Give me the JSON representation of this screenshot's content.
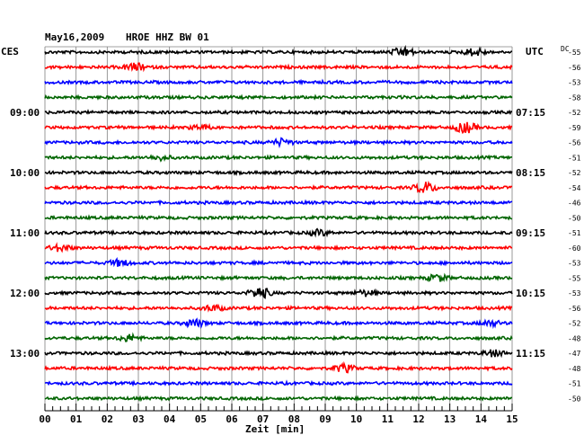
{
  "header": {
    "date": "May16,2009",
    "station": "HROE HHZ BW 01",
    "left_label": "CES",
    "right_label": "UTC",
    "dc_label": "DC"
  },
  "colors": {
    "trace_cycle": [
      "#000000",
      "#ff0000",
      "#0000ff",
      "#006400"
    ],
    "grid": "#808080",
    "background": "#ffffff"
  },
  "chart_data": {
    "type": "line",
    "title": "May16,2009   HROE HHZ BW 01",
    "xlabel": "Zeit [min]",
    "xlim": [
      0,
      15
    ],
    "x_ticks": [
      "00",
      "01",
      "02",
      "03",
      "04",
      "05",
      "06",
      "07",
      "08",
      "09",
      "10",
      "11",
      "12",
      "13",
      "14",
      "15"
    ],
    "minor_ticks_per_minute": 4,
    "rows": 24,
    "row_interval_minutes": 15,
    "left_time_labels": [
      {
        "row": 4,
        "label": "09:00"
      },
      {
        "row": 8,
        "label": "10:00"
      },
      {
        "row": 12,
        "label": "11:00"
      },
      {
        "row": 16,
        "label": "12:00"
      },
      {
        "row": 20,
        "label": "13:00"
      }
    ],
    "right_time_labels": [
      {
        "row": 4,
        "label": "07:15"
      },
      {
        "row": 8,
        "label": "08:15"
      },
      {
        "row": 12,
        "label": "09:15"
      },
      {
        "row": 16,
        "label": "10:15"
      },
      {
        "row": 20,
        "label": "11:15"
      }
    ],
    "dc_offsets": [
      -55,
      -56,
      -53,
      -58,
      -52,
      -59,
      -56,
      -51,
      -52,
      -54,
      -46,
      -50,
      -51,
      -60,
      -53,
      -55,
      -53,
      -56,
      -52,
      -48,
      -47,
      -48,
      -51,
      -50
    ],
    "events": [
      {
        "row": 0,
        "minute": 11.5,
        "amp": 0.8
      },
      {
        "row": 0,
        "minute": 13.8,
        "amp": 0.7
      },
      {
        "row": 1,
        "minute": 2.9,
        "amp": 0.7
      },
      {
        "row": 5,
        "minute": 5.0,
        "amp": 0.4
      },
      {
        "row": 5,
        "minute": 13.5,
        "amp": 1.0
      },
      {
        "row": 6,
        "minute": 7.6,
        "amp": 0.6
      },
      {
        "row": 7,
        "minute": 3.7,
        "amp": 0.4
      },
      {
        "row": 9,
        "minute": 12.2,
        "amp": 1.0
      },
      {
        "row": 12,
        "minute": 8.8,
        "amp": 0.5
      },
      {
        "row": 13,
        "minute": 0.5,
        "amp": 0.6
      },
      {
        "row": 14,
        "minute": 2.4,
        "amp": 0.6
      },
      {
        "row": 15,
        "minute": 12.6,
        "amp": 0.6
      },
      {
        "row": 16,
        "minute": 6.9,
        "amp": 1.0
      },
      {
        "row": 16,
        "minute": 10.3,
        "amp": 0.5
      },
      {
        "row": 17,
        "minute": 5.4,
        "amp": 0.5
      },
      {
        "row": 18,
        "minute": 4.8,
        "amp": 0.7
      },
      {
        "row": 18,
        "minute": 14.3,
        "amp": 0.5
      },
      {
        "row": 19,
        "minute": 2.7,
        "amp": 0.6
      },
      {
        "row": 20,
        "minute": 14.4,
        "amp": 0.6
      },
      {
        "row": 21,
        "minute": 9.6,
        "amp": 0.7
      }
    ],
    "grid": true
  }
}
